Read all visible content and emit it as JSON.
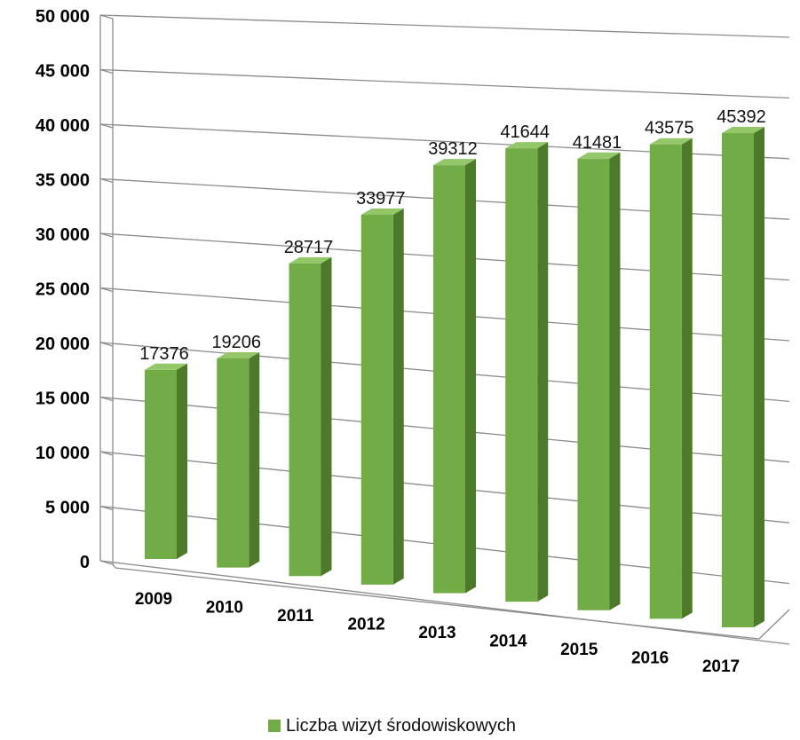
{
  "chart_data": {
    "type": "bar",
    "categories": [
      "2009",
      "2010",
      "2011",
      "2012",
      "2013",
      "2014",
      "2015",
      "2016",
      "2017"
    ],
    "series": [
      {
        "name": "Liczba wizyt środowiskowych",
        "values": [
          17376,
          19206,
          28717,
          33977,
          39312,
          41644,
          41481,
          43575,
          45392
        ]
      }
    ],
    "ylim": [
      0,
      50000
    ],
    "yticks": [
      "0",
      "5 000",
      "10 000",
      "15 000",
      "20 000",
      "25 000",
      "30 000",
      "35 000",
      "40 000",
      "45 000",
      "50 000"
    ],
    "grid": true,
    "legend_position": "bottom",
    "colors": {
      "bar_front": "#72AC46",
      "bar_side": "#4D7A2A",
      "bar_top": "#93C76A",
      "grid": "#8C8C8C"
    }
  }
}
